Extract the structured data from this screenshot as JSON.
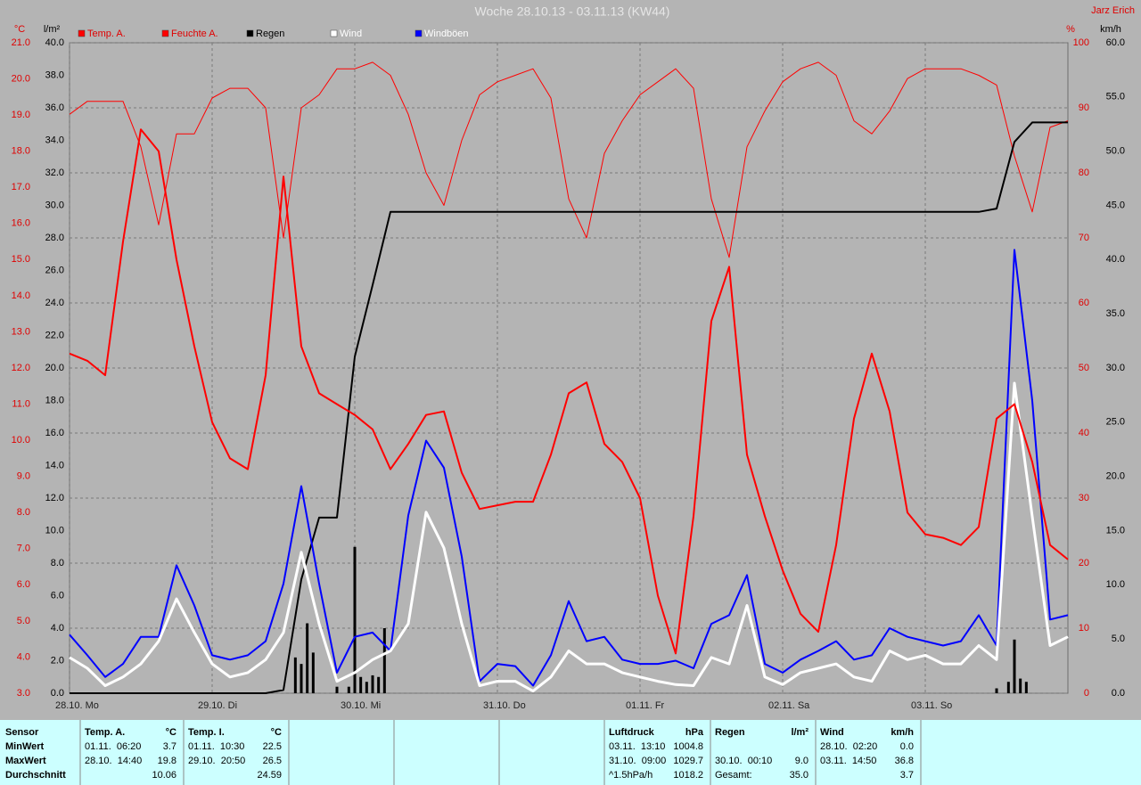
{
  "chart_data": {
    "type": "line",
    "title": "Woche 28.10.13 - 03.11.13 (KW44)",
    "author": "Jarz Erich",
    "xlim": [
      0,
      168
    ],
    "xticks": [
      {
        "value": 0,
        "label": "28.10. Mo"
      },
      {
        "value": 24,
        "label": "29.10. Di"
      },
      {
        "value": 48,
        "label": "30.10. Mi"
      },
      {
        "value": 72,
        "label": "31.10. Do"
      },
      {
        "value": 96,
        "label": "01.11. Fr"
      },
      {
        "value": 120,
        "label": "02.11. Sa"
      },
      {
        "value": 144,
        "label": "03.11. So"
      }
    ],
    "ylabel": "°C",
    "ylim": [
      3,
      21
    ],
    "yticks": [
      {
        "value": 3,
        "label": "3.0"
      },
      {
        "value": 4,
        "label": "4.0"
      },
      {
        "value": 5,
        "label": "5.0"
      },
      {
        "value": 6,
        "label": "6.0"
      },
      {
        "value": 7,
        "label": "7.0"
      },
      {
        "value": 8,
        "label": "8.0"
      },
      {
        "value": 9,
        "label": "9.0"
      },
      {
        "value": 10,
        "label": "10.0"
      },
      {
        "value": 11,
        "label": "11.0"
      },
      {
        "value": 12,
        "label": "12.0"
      },
      {
        "value": 13,
        "label": "13.0"
      },
      {
        "value": 14,
        "label": "14.0"
      },
      {
        "value": 15,
        "label": "15.0"
      },
      {
        "value": 16,
        "label": "16.0"
      },
      {
        "value": 17,
        "label": "17.0"
      },
      {
        "value": 18,
        "label": "18.0"
      },
      {
        "value": 19,
        "label": "19.0"
      },
      {
        "value": 20,
        "label": "20.0"
      },
      {
        "value": 21,
        "label": "21.0"
      }
    ],
    "y2label": "%",
    "y2lim": [
      0,
      100
    ],
    "y2ticks": [
      0,
      10,
      20,
      30,
      40,
      50,
      60,
      70,
      80,
      90,
      100
    ],
    "y3label": "l/m²",
    "y3lim": [
      0,
      40
    ],
    "y3ticks": [
      {
        "value": 0,
        "label": "0.0"
      },
      {
        "value": 2,
        "label": "2.0"
      },
      {
        "value": 4,
        "label": "4.0"
      },
      {
        "value": 6,
        "label": "6.0"
      },
      {
        "value": 8,
        "label": "8.0"
      },
      {
        "value": 10,
        "label": "10.0"
      },
      {
        "value": 12,
        "label": "12.0"
      },
      {
        "value": 14,
        "label": "14.0"
      },
      {
        "value": 16,
        "label": "16.0"
      },
      {
        "value": 18,
        "label": "18.0"
      },
      {
        "value": 20,
        "label": "20.0"
      },
      {
        "value": 22,
        "label": "22.0"
      },
      {
        "value": 24,
        "label": "24.0"
      },
      {
        "value": 26,
        "label": "26.0"
      },
      {
        "value": 28,
        "label": "28.0"
      },
      {
        "value": 30,
        "label": "30.0"
      },
      {
        "value": 32,
        "label": "32.0"
      },
      {
        "value": 34,
        "label": "34.0"
      },
      {
        "value": 36,
        "label": "36.0"
      },
      {
        "value": 38,
        "label": "38.0"
      },
      {
        "value": 40,
        "label": "40.0"
      }
    ],
    "y4label": "km/h",
    "y4lim": [
      0,
      60
    ],
    "y4ticks": [
      {
        "value": 0,
        "label": "0.0"
      },
      {
        "value": 5,
        "label": "5.0"
      },
      {
        "value": 10,
        "label": "10.0"
      },
      {
        "value": 15,
        "label": "15.0"
      },
      {
        "value": 20,
        "label": "20.0"
      },
      {
        "value": 25,
        "label": "25.0"
      },
      {
        "value": 30,
        "label": "30.0"
      },
      {
        "value": 35,
        "label": "35.0"
      },
      {
        "value": 40,
        "label": "40.0"
      },
      {
        "value": 45,
        "label": "45.0"
      },
      {
        "value": 50,
        "label": "50.0"
      },
      {
        "value": 55,
        "label": "55.0"
      },
      {
        "value": 60,
        "label": "60.0"
      }
    ],
    "grid": true,
    "grid_axis": "y2",
    "x": [
      0,
      3,
      6,
      9,
      12,
      15,
      18,
      21,
      24,
      27,
      30,
      33,
      36,
      39,
      42,
      45,
      48,
      51,
      54,
      57,
      60,
      63,
      66,
      69,
      72,
      75,
      78,
      81,
      84,
      87,
      90,
      93,
      96,
      99,
      102,
      105,
      108,
      111,
      114,
      117,
      120,
      123,
      126,
      129,
      132,
      135,
      138,
      141,
      144,
      147,
      150,
      153,
      156,
      159,
      162,
      165,
      168
    ],
    "series": [
      {
        "name": "Temp. A.",
        "color": "#ff0000",
        "label_color": "#e00000",
        "axis": "y",
        "values": [
          12.4,
          12.2,
          11.8,
          15.5,
          18.6,
          18.0,
          15.0,
          12.6,
          10.5,
          9.5,
          9.2,
          11.8,
          17.3,
          12.6,
          11.3,
          11.0,
          10.7,
          10.3,
          9.2,
          9.9,
          10.7,
          10.8,
          9.1,
          8.1,
          8.2,
          8.3,
          8.3,
          9.6,
          11.3,
          11.6,
          9.9,
          9.4,
          8.4,
          5.7,
          4.1,
          7.9,
          13.3,
          14.8,
          9.6,
          7.9,
          6.4,
          5.2,
          4.7,
          7.1,
          10.6,
          12.4,
          10.8,
          8.0,
          7.4,
          7.3,
          7.1,
          7.6,
          10.6,
          11.0,
          9.4,
          7.1,
          6.7
        ]
      },
      {
        "name": "Feuchte A.",
        "color": "#ff0000",
        "label_color": "#e00000",
        "axis": "y2",
        "values": [
          89,
          91,
          91,
          91,
          84,
          72,
          86,
          86,
          91.5,
          93,
          93,
          90,
          70,
          90,
          92,
          96,
          96,
          97,
          95,
          89,
          80,
          75,
          85,
          92,
          94,
          95,
          96,
          91.5,
          76,
          70,
          83,
          88,
          92,
          94,
          96,
          93,
          76,
          67,
          84,
          89.5,
          94,
          96,
          97,
          95,
          88,
          86,
          89.5,
          94.5,
          96,
          96,
          96,
          95,
          93.5,
          82.6,
          74,
          87,
          88
        ]
      },
      {
        "name": "Regen",
        "color": "#000000",
        "label_color": "#000000",
        "axis": "y3",
        "values": [
          0,
          0,
          0,
          0,
          0,
          0,
          0,
          0,
          0,
          0,
          0,
          0,
          0.2,
          7.0,
          10.8,
          10.8,
          20.7,
          25.1,
          29.6,
          29.6,
          29.6,
          29.6,
          29.6,
          29.6,
          29.6,
          29.6,
          29.6,
          29.6,
          29.6,
          29.6,
          29.6,
          29.6,
          29.6,
          29.6,
          29.6,
          29.6,
          29.6,
          29.6,
          29.6,
          29.6,
          29.6,
          29.6,
          29.6,
          29.6,
          29.6,
          29.6,
          29.6,
          29.6,
          29.6,
          29.6,
          29.6,
          29.6,
          29.8,
          33.9,
          35.1,
          35.1,
          35.1
        ]
      },
      {
        "name": "Wind",
        "color": "#ffffff",
        "label_color": "#ffffff",
        "axis": "y4",
        "values": [
          3.3,
          2.3,
          0.7,
          1.5,
          2.7,
          4.8,
          8.7,
          5.6,
          2.7,
          1.5,
          1.9,
          3.1,
          5.6,
          13.0,
          6.4,
          1.1,
          1.9,
          3.1,
          3.9,
          6.4,
          16.7,
          13.4,
          6.4,
          0.7,
          1.1,
          1.1,
          0.2,
          1.5,
          3.9,
          2.7,
          2.7,
          1.9,
          1.5,
          1.1,
          0.8,
          0.7,
          3.3,
          2.7,
          8.1,
          1.5,
          0.8,
          1.9,
          2.3,
          2.7,
          1.5,
          1.1,
          3.9,
          3.1,
          3.5,
          2.7,
          2.7,
          4.4,
          3.1,
          28.6,
          16.3,
          4.4,
          5.2
        ]
      },
      {
        "name": "Windböen",
        "color": "#0000ff",
        "label_color": "#ffffff",
        "axis": "y4",
        "values": [
          5.4,
          3.5,
          1.5,
          2.7,
          5.2,
          5.2,
          11.8,
          8.1,
          3.5,
          3.1,
          3.5,
          4.8,
          10.1,
          19.1,
          10.1,
          1.9,
          5.2,
          5.6,
          3.9,
          16.4,
          23.3,
          20.8,
          12.6,
          1.1,
          2.7,
          2.5,
          0.7,
          3.5,
          8.5,
          4.8,
          5.2,
          3.1,
          2.7,
          2.7,
          3.0,
          2.3,
          6.4,
          7.2,
          10.9,
          2.7,
          1.9,
          3.1,
          3.9,
          4.8,
          3.1,
          3.5,
          6.0,
          5.2,
          4.8,
          4.4,
          4.8,
          7.2,
          4.4,
          40.9,
          27.0,
          6.8,
          7.2
        ]
      }
    ],
    "rain_bars": {
      "color": "#000000",
      "axis": "y3",
      "x": [
        38,
        39,
        40,
        41,
        45,
        47,
        48,
        49,
        50,
        51,
        52,
        53,
        156,
        158,
        159,
        160,
        161
      ],
      "values": [
        2.2,
        1.8,
        4.3,
        2.5,
        0.4,
        0.4,
        9.0,
        1.0,
        0.7,
        1.1,
        1.0,
        4.0,
        0.3,
        0.7,
        3.3,
        0.9,
        0.7
      ]
    }
  },
  "stats_table": {
    "row_labels": [
      "Sensor",
      "MinWert",
      "MaxWert",
      "Durchschnitt"
    ],
    "columns": [
      {
        "header": "Temp. A.",
        "unit": "°C",
        "rows": [
          [
            "01.11.  06:20",
            "3.7"
          ],
          [
            "28.10.  14:40",
            "19.8"
          ],
          [
            null,
            "10.06"
          ]
        ]
      },
      {
        "header": "Temp. I.",
        "unit": "°C",
        "rows": [
          [
            "01.11.  10:30",
            "22.5"
          ],
          [
            "29.10.  20:50",
            "26.5"
          ],
          [
            null,
            "24.59"
          ]
        ]
      },
      {
        "header": "Luftdruck",
        "unit": "hPa",
        "rows": [
          [
            "03.11.  13:10",
            "1004.8"
          ],
          [
            "31.10.  09:00",
            "1029.7"
          ],
          [
            "^1.5hPa/h",
            "1018.2"
          ]
        ]
      },
      {
        "header": "Regen",
        "unit": "l/m²",
        "rows": [
          [
            null,
            null
          ],
          [
            "30.10.  00:10",
            "9.0"
          ],
          [
            "Gesamt:",
            "35.0"
          ]
        ]
      },
      {
        "header": "Wind",
        "unit": "km/h",
        "rows": [
          [
            "28.10.  02:20",
            "0.0"
          ],
          [
            "03.11.  14:50",
            "36.8"
          ],
          [
            null,
            "3.7"
          ]
        ]
      }
    ]
  }
}
